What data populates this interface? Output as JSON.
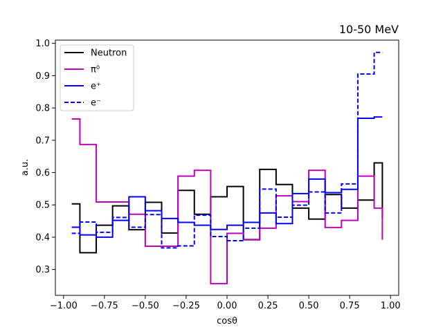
{
  "chart_data": {
    "type": "line",
    "title": "10-50 MeV",
    "xlabel": "cosθ",
    "ylabel": "a.u.",
    "xlim": [
      -1.05,
      1.05
    ],
    "ylim": [
      0.22,
      1.01
    ],
    "xticks": [
      -1.0,
      -0.75,
      -0.5,
      -0.25,
      0.0,
      0.25,
      0.5,
      0.75,
      1.0
    ],
    "xtick_labels": [
      "−1.00",
      "−0.75",
      "−0.50",
      "−0.25",
      "0.00",
      "0.25",
      "0.50",
      "0.75",
      "1.00"
    ],
    "yticks": [
      0.3,
      0.4,
      0.5,
      0.6,
      0.7,
      0.8,
      0.9,
      1.0
    ],
    "ytick_labels": [
      "0.3",
      "0.4",
      "0.5",
      "0.6",
      "0.7",
      "0.8",
      "0.9",
      "1.0"
    ],
    "grid": false,
    "legend_position": "upper-left",
    "bin_edges": [
      -0.95,
      -0.9,
      -0.8,
      -0.7,
      -0.6,
      -0.5,
      -0.4,
      -0.3,
      -0.2,
      -0.1,
      0.0,
      0.1,
      0.2,
      0.3,
      0.4,
      0.5,
      0.6,
      0.7,
      0.8,
      0.9,
      0.95
    ],
    "series": [
      {
        "name": "Neutron",
        "color": "#000000",
        "dash": "solid",
        "values": [
          0.503,
          0.352,
          0.437,
          0.497,
          0.423,
          0.508,
          0.413,
          0.545,
          0.471,
          0.525,
          0.557,
          0.392,
          0.61,
          0.563,
          0.49,
          0.456,
          0.532,
          0.49,
          0.515,
          0.63,
          0.456
        ]
      },
      {
        "name": "π⁰",
        "color": "#bf00bf",
        "dash": "solid",
        "values": [
          0.766,
          0.687,
          0.509,
          0.509,
          0.471,
          0.372,
          0.372,
          0.589,
          0.607,
          0.256,
          0.412,
          0.393,
          0.428,
          0.528,
          0.51,
          0.607,
          0.43,
          0.452,
          0.589,
          0.49,
          0.392
        ]
      },
      {
        "name": "e⁺",
        "color": "#0000ff",
        "dash": "solid",
        "values": [
          0.431,
          0.407,
          0.4,
          0.452,
          0.525,
          0.482,
          0.458,
          0.446,
          0.437,
          0.424,
          0.437,
          0.446,
          0.475,
          0.442,
          0.535,
          0.58,
          0.538,
          0.548,
          0.768,
          0.772,
          0.772
        ]
      },
      {
        "name": "e⁻",
        "color": "#0000ff",
        "dash": "dashed",
        "values": [
          0.412,
          0.447,
          0.415,
          0.461,
          0.431,
          0.47,
          0.367,
          0.373,
          0.468,
          0.402,
          0.389,
          0.428,
          0.549,
          0.462,
          0.499,
          0.54,
          0.475,
          0.565,
          0.905,
          0.972,
          0.972
        ]
      }
    ]
  }
}
